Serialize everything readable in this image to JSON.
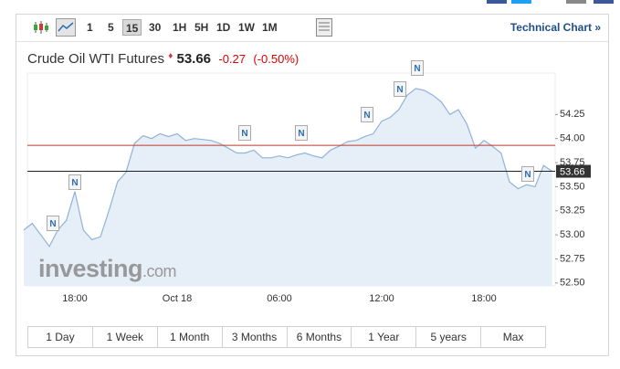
{
  "header": {
    "title": "Crude Oil WTI Futures",
    "price": "53.66",
    "change": "-0.27",
    "change_pct": "(-0.50%)"
  },
  "toolbar": {
    "intervals": [
      "1",
      "5",
      "15",
      "30",
      "1H",
      "5H",
      "1D",
      "1W",
      "1M"
    ],
    "active_interval": "15",
    "technical_link": "Technical Chart »"
  },
  "ranges": [
    "1 Day",
    "1 Week",
    "1 Month",
    "3 Months",
    "6 Months",
    "1 Year",
    "5 years",
    "Max"
  ],
  "watermark": {
    "brand": "investing",
    "suffix": ".com"
  },
  "chart_data": {
    "type": "area",
    "categories": [
      null,
      null,
      null,
      null,
      null,
      null,
      "18:00",
      null,
      null,
      null,
      null,
      null,
      null,
      null,
      null,
      null,
      null,
      null,
      "Oct 18",
      null,
      null,
      null,
      null,
      null,
      null,
      null,
      null,
      null,
      null,
      null,
      "06:00",
      null,
      null,
      null,
      null,
      null,
      null,
      null,
      null,
      null,
      null,
      null,
      "12:00",
      null,
      null,
      null,
      null,
      null,
      null,
      null,
      null,
      null,
      null,
      null,
      "18:00",
      null,
      null,
      null,
      null,
      null,
      null,
      null,
      null
    ],
    "series": [
      {
        "name": "Crude Oil WTI Futures",
        "color": "#8fb3d9",
        "values": [
          53.05,
          53.12,
          53.0,
          52.88,
          53.05,
          53.15,
          53.45,
          53.05,
          52.95,
          52.98,
          53.25,
          53.55,
          53.65,
          53.95,
          54.03,
          54.0,
          54.05,
          54.02,
          54.05,
          53.98,
          54.0,
          53.99,
          53.98,
          53.95,
          53.9,
          53.85,
          53.85,
          53.88,
          53.8,
          53.8,
          53.82,
          53.8,
          53.83,
          53.85,
          53.82,
          53.8,
          53.88,
          53.92,
          53.97,
          53.98,
          54.02,
          54.05,
          54.18,
          54.22,
          54.3,
          54.45,
          54.52,
          54.5,
          54.45,
          54.38,
          54.25,
          54.3,
          54.15,
          53.9,
          53.98,
          53.92,
          53.85,
          53.55,
          53.48,
          53.52,
          53.5,
          53.72,
          53.66
        ]
      }
    ],
    "ylim": [
      52.47,
      54.68
    ],
    "yticks": [
      {
        "value": 52.5,
        "label": "52.50"
      },
      {
        "value": 52.75,
        "label": "52.75"
      },
      {
        "value": 53,
        "label": "53.00"
      },
      {
        "value": 53.25,
        "label": "53.25"
      },
      {
        "value": 53.5,
        "label": "53.50"
      },
      {
        "value": 53.75,
        "label": "53.75"
      },
      {
        "value": 54,
        "label": "54.00"
      },
      {
        "value": 54.25,
        "label": "54.25"
      }
    ],
    "previous_close": 53.93,
    "previous_close_color": "#c0392b",
    "last_value": {
      "value": 53.66,
      "label": "53.66"
    },
    "news": [
      "N",
      "N",
      "N",
      "N",
      "N",
      "N",
      "N",
      "N"
    ]
  }
}
